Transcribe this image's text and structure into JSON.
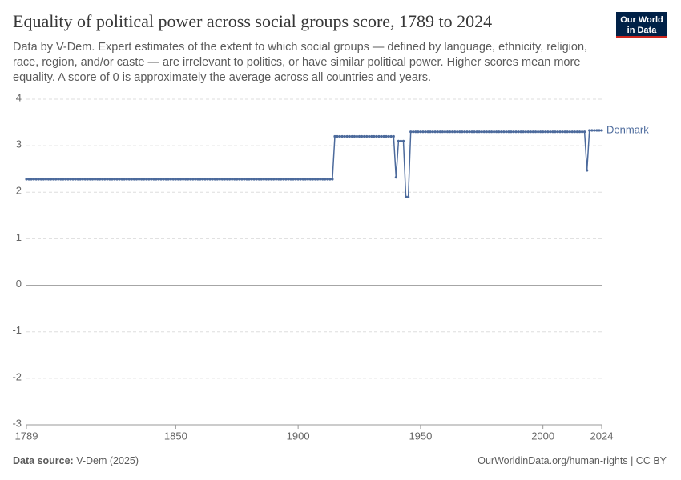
{
  "chart_data": {
    "type": "line",
    "title": "Equality of political power across social groups score, 1789 to 2024",
    "subtitle": "Data by V-Dem. Expert estimates of the extent to which social groups — defined by language, ethnicity, religion, race, region, and/or caste — are irrelevant to politics, or have similar political power. Higher scores mean more equality. A score of 0 is approximately the average across all countries and years.",
    "logo": "Our World in Data",
    "source_label": "Data source:",
    "source": "V-Dem (2025)",
    "footer_right": "OurWorldinData.org/human-rights | CC BY",
    "xlim": [
      1789,
      2024
    ],
    "xticks": [
      1789,
      1850,
      1900,
      1950,
      2000,
      2024
    ],
    "ylim": [
      -3,
      4
    ],
    "yticks": [
      -3,
      -2,
      -1,
      0,
      1,
      2,
      3,
      4
    ],
    "grid": true,
    "x": [
      1789,
      1790,
      1791,
      1792,
      1793,
      1794,
      1795,
      1796,
      1797,
      1798,
      1799,
      1800,
      1801,
      1802,
      1803,
      1804,
      1805,
      1806,
      1807,
      1808,
      1809,
      1810,
      1811,
      1812,
      1813,
      1814,
      1815,
      1816,
      1817,
      1818,
      1819,
      1820,
      1821,
      1822,
      1823,
      1824,
      1825,
      1826,
      1827,
      1828,
      1829,
      1830,
      1831,
      1832,
      1833,
      1834,
      1835,
      1836,
      1837,
      1838,
      1839,
      1840,
      1841,
      1842,
      1843,
      1844,
      1845,
      1846,
      1847,
      1848,
      1849,
      1850,
      1851,
      1852,
      1853,
      1854,
      1855,
      1856,
      1857,
      1858,
      1859,
      1860,
      1861,
      1862,
      1863,
      1864,
      1865,
      1866,
      1867,
      1868,
      1869,
      1870,
      1871,
      1872,
      1873,
      1874,
      1875,
      1876,
      1877,
      1878,
      1879,
      1880,
      1881,
      1882,
      1883,
      1884,
      1885,
      1886,
      1887,
      1888,
      1889,
      1890,
      1891,
      1892,
      1893,
      1894,
      1895,
      1896,
      1897,
      1898,
      1899,
      1900,
      1901,
      1902,
      1903,
      1904,
      1905,
      1906,
      1907,
      1908,
      1909,
      1910,
      1911,
      1912,
      1913,
      1914,
      1915,
      1916,
      1917,
      1918,
      1919,
      1920,
      1921,
      1922,
      1923,
      1924,
      1925,
      1926,
      1927,
      1928,
      1929,
      1930,
      1931,
      1932,
      1933,
      1934,
      1935,
      1936,
      1937,
      1938,
      1939,
      1940,
      1941,
      1942,
      1943,
      1944,
      1945,
      1946,
      1947,
      1948,
      1949,
      1950,
      1951,
      1952,
      1953,
      1954,
      1955,
      1956,
      1957,
      1958,
      1959,
      1960,
      1961,
      1962,
      1963,
      1964,
      1965,
      1966,
      1967,
      1968,
      1969,
      1970,
      1971,
      1972,
      1973,
      1974,
      1975,
      1976,
      1977,
      1978,
      1979,
      1980,
      1981,
      1982,
      1983,
      1984,
      1985,
      1986,
      1987,
      1988,
      1989,
      1990,
      1991,
      1992,
      1993,
      1994,
      1995,
      1996,
      1997,
      1998,
      1999,
      2000,
      2001,
      2002,
      2003,
      2004,
      2005,
      2006,
      2007,
      2008,
      2009,
      2010,
      2011,
      2012,
      2013,
      2014,
      2015,
      2016,
      2017,
      2018,
      2019,
      2020,
      2021,
      2022,
      2023,
      2024
    ],
    "series": [
      {
        "name": "Denmark",
        "color": "#4c6a9c",
        "values": [
          2.28,
          2.28,
          2.28,
          2.28,
          2.28,
          2.28,
          2.28,
          2.28,
          2.28,
          2.28,
          2.28,
          2.28,
          2.28,
          2.28,
          2.28,
          2.28,
          2.28,
          2.28,
          2.28,
          2.28,
          2.28,
          2.28,
          2.28,
          2.28,
          2.28,
          2.28,
          2.28,
          2.28,
          2.28,
          2.28,
          2.28,
          2.28,
          2.28,
          2.28,
          2.28,
          2.28,
          2.28,
          2.28,
          2.28,
          2.28,
          2.28,
          2.28,
          2.28,
          2.28,
          2.28,
          2.28,
          2.28,
          2.28,
          2.28,
          2.28,
          2.28,
          2.28,
          2.28,
          2.28,
          2.28,
          2.28,
          2.28,
          2.28,
          2.28,
          2.28,
          2.28,
          2.28,
          2.28,
          2.28,
          2.28,
          2.28,
          2.28,
          2.28,
          2.28,
          2.28,
          2.28,
          2.28,
          2.28,
          2.28,
          2.28,
          2.28,
          2.28,
          2.28,
          2.28,
          2.28,
          2.28,
          2.28,
          2.28,
          2.28,
          2.28,
          2.28,
          2.28,
          2.28,
          2.28,
          2.28,
          2.28,
          2.28,
          2.28,
          2.28,
          2.28,
          2.28,
          2.28,
          2.28,
          2.28,
          2.28,
          2.28,
          2.28,
          2.28,
          2.28,
          2.28,
          2.28,
          2.28,
          2.28,
          2.28,
          2.28,
          2.28,
          2.28,
          2.28,
          2.28,
          2.28,
          2.28,
          2.28,
          2.28,
          2.28,
          2.28,
          2.28,
          2.28,
          2.28,
          2.28,
          2.28,
          2.28,
          3.2,
          3.2,
          3.2,
          3.2,
          3.2,
          3.2,
          3.2,
          3.2,
          3.2,
          3.2,
          3.2,
          3.2,
          3.2,
          3.2,
          3.2,
          3.2,
          3.2,
          3.2,
          3.2,
          3.2,
          3.2,
          3.2,
          3.2,
          3.2,
          3.2,
          2.32,
          3.1,
          3.1,
          3.1,
          1.9,
          1.9,
          3.3,
          3.3,
          3.3,
          3.3,
          3.3,
          3.3,
          3.3,
          3.3,
          3.3,
          3.3,
          3.3,
          3.3,
          3.3,
          3.3,
          3.3,
          3.3,
          3.3,
          3.3,
          3.3,
          3.3,
          3.3,
          3.3,
          3.3,
          3.3,
          3.3,
          3.3,
          3.3,
          3.3,
          3.3,
          3.3,
          3.3,
          3.3,
          3.3,
          3.3,
          3.3,
          3.3,
          3.3,
          3.3,
          3.3,
          3.3,
          3.3,
          3.3,
          3.3,
          3.3,
          3.3,
          3.3,
          3.3,
          3.3,
          3.3,
          3.3,
          3.3,
          3.3,
          3.3,
          3.3,
          3.3,
          3.3,
          3.3,
          3.3,
          3.3,
          3.3,
          3.3,
          3.3,
          3.3,
          3.3,
          3.3,
          3.3,
          3.3,
          3.3,
          3.3,
          3.3,
          3.3,
          3.3,
          2.47,
          3.33,
          3.33,
          3.33,
          3.33,
          3.33,
          3.33
        ]
      }
    ]
  }
}
